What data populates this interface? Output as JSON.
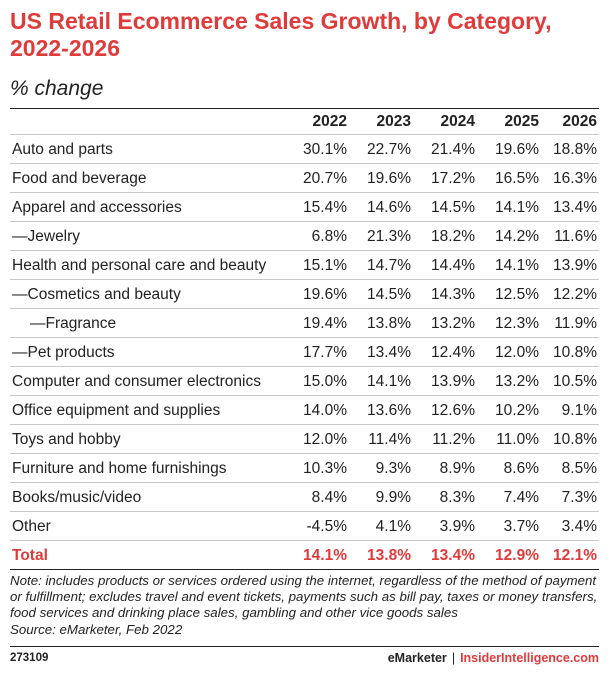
{
  "chart_data": {
    "type": "table",
    "title": "US Retail Ecommerce Sales Growth, by Category, 2022-2026",
    "subtitle": "% change",
    "columns": [
      "2022",
      "2023",
      "2024",
      "2025",
      "2026"
    ],
    "rows": [
      {
        "label": "Auto and parts",
        "values": [
          "30.1%",
          "22.7%",
          "21.4%",
          "19.6%",
          "18.8%"
        ]
      },
      {
        "label": "Food and beverage",
        "values": [
          "20.7%",
          "19.6%",
          "17.2%",
          "16.5%",
          "16.3%"
        ]
      },
      {
        "label": "Apparel and accessories",
        "values": [
          "15.4%",
          "14.6%",
          "14.5%",
          "14.1%",
          "13.4%"
        ]
      },
      {
        "label": "—Jewelry",
        "values": [
          "6.8%",
          "21.3%",
          "18.2%",
          "14.2%",
          "11.6%"
        ]
      },
      {
        "label": "Health and personal care and beauty",
        "values": [
          "15.1%",
          "14.7%",
          "14.4%",
          "14.1%",
          "13.9%"
        ]
      },
      {
        "label": "—Cosmetics and beauty",
        "values": [
          "19.6%",
          "14.5%",
          "14.3%",
          "12.5%",
          "12.2%"
        ]
      },
      {
        "label": "—Fragrance",
        "indent": 2,
        "values": [
          "19.4%",
          "13.8%",
          "13.2%",
          "12.3%",
          "11.9%"
        ]
      },
      {
        "label": "—Pet products",
        "values": [
          "17.7%",
          "13.4%",
          "12.4%",
          "12.0%",
          "10.8%"
        ]
      },
      {
        "label": "Computer and consumer electronics",
        "values": [
          "15.0%",
          "14.1%",
          "13.9%",
          "13.2%",
          "10.5%"
        ]
      },
      {
        "label": "Office equipment and supplies",
        "values": [
          "14.0%",
          "13.6%",
          "12.6%",
          "10.2%",
          "9.1%"
        ]
      },
      {
        "label": "Toys and hobby",
        "values": [
          "12.0%",
          "11.4%",
          "11.2%",
          "11.0%",
          "10.8%"
        ]
      },
      {
        "label": "Furniture and home furnishings",
        "values": [
          "10.3%",
          "9.3%",
          "8.9%",
          "8.6%",
          "8.5%"
        ]
      },
      {
        "label": "Books/music/video",
        "values": [
          "8.4%",
          "9.9%",
          "8.3%",
          "7.4%",
          "7.3%"
        ]
      },
      {
        "label": "Other",
        "values": [
          "-4.5%",
          "4.1%",
          "3.9%",
          "3.7%",
          "3.4%"
        ]
      }
    ],
    "total": {
      "label": "Total",
      "values": [
        "14.1%",
        "13.8%",
        "13.4%",
        "12.9%",
        "12.1%"
      ]
    },
    "note": "Note: includes products or services ordered using the internet, regardless of the method of payment or fulfillment; excludes travel and event tickets, payments such as bill pay, taxes or money transfers, food services and drinking place sales, gambling and other vice goods sales",
    "source": "Source: eMarketer, Feb 2022"
  },
  "footer": {
    "chart_id": "273109",
    "brand": "eMarketer",
    "separator": "|",
    "brand2": "InsiderIntelligence.com"
  },
  "colors": {
    "accent": "#e03b3b",
    "text": "#222222",
    "rule": "#c8c8c8"
  }
}
